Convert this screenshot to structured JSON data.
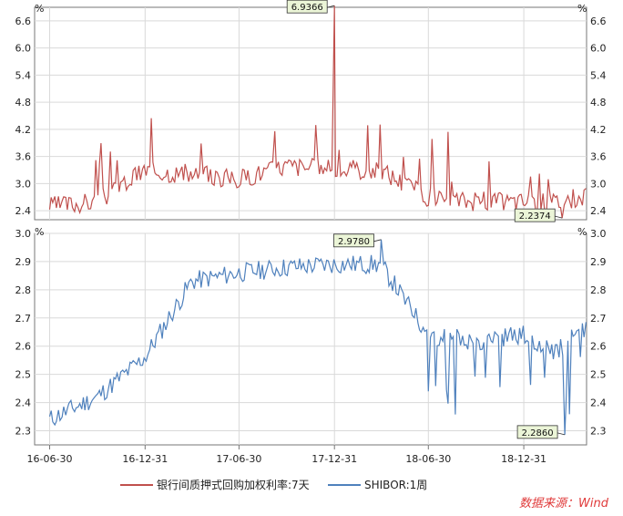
{
  "chart_data": [
    {
      "type": "line",
      "panel": "top",
      "unit": "%",
      "y_ticks": [
        "2.4",
        "3.0",
        "3.6",
        "4.2",
        "4.8",
        "5.4",
        "6.0",
        "6.6"
      ],
      "ylim": [
        2.2,
        6.9
      ],
      "grid": true,
      "series": [
        {
          "name": "银行间质押式回购加权利率:7天",
          "color": "#c0504d",
          "x": [
            "2016-06-30",
            "2016-09-30",
            "2016-12-31",
            "2017-03-31",
            "2017-06-30",
            "2017-09-30",
            "2017-12-31",
            "2018-03-31",
            "2018-06-30",
            "2018-09-30",
            "2018-12-31",
            "2019-02-28",
            "2019-04-30"
          ],
          "values": [
            2.5,
            2.6,
            3.3,
            3.2,
            3.1,
            3.4,
            3.3,
            3.3,
            2.7,
            2.6,
            2.6,
            2.6,
            2.7
          ]
        }
      ],
      "annotations": [
        {
          "label": "6.9366",
          "x": "2017-12-31",
          "y": 6.9366
        },
        {
          "label": "2.2374",
          "x": "2019-03-15",
          "y": 2.2374
        }
      ]
    },
    {
      "type": "line",
      "panel": "bottom",
      "unit": "%",
      "y_ticks": [
        "2.3",
        "2.4",
        "2.5",
        "2.6",
        "2.7",
        "2.8",
        "2.9",
        "3.0"
      ],
      "ylim": [
        2.25,
        3.0
      ],
      "grid": true,
      "series": [
        {
          "name": "SHIBOR:1周",
          "color": "#4f81bd",
          "x": [
            "2016-06-30",
            "2016-09-30",
            "2016-12-31",
            "2017-03-31",
            "2017-06-30",
            "2017-09-30",
            "2017-12-31",
            "2018-03-31",
            "2018-06-30",
            "2018-09-30",
            "2018-12-31",
            "2019-02-28",
            "2019-04-30"
          ],
          "values": [
            2.34,
            2.42,
            2.56,
            2.83,
            2.86,
            2.88,
            2.89,
            2.89,
            2.64,
            2.62,
            2.64,
            2.58,
            2.66
          ]
        }
      ],
      "annotations": [
        {
          "label": "2.9780",
          "x": "2018-03-31",
          "y": 2.978
        },
        {
          "label": "2.2860",
          "x": "2019-03-20",
          "y": 2.286
        }
      ]
    }
  ],
  "x_ticks": [
    "16-06-30",
    "16-12-31",
    "17-06-30",
    "17-12-31",
    "18-06-30",
    "18-12-31"
  ],
  "source": "数据来源：Wind"
}
